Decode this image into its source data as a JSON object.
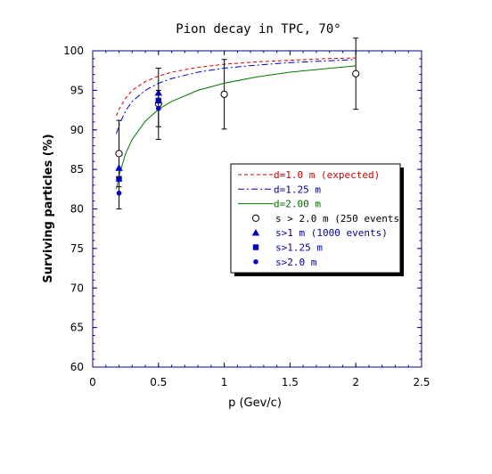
{
  "chart_data": {
    "type": "line",
    "title": "Pion decay in TPC, 70°",
    "xlabel": "p (Gev/c)",
    "ylabel": "Surviving particles  (%)",
    "xlim": [
      0,
      2.5
    ],
    "ylim": [
      60,
      100
    ],
    "x_ticks": [
      "0",
      "0.5",
      "1",
      "1.5",
      "2",
      "2.5"
    ],
    "y_ticks": [
      "60",
      "65",
      "70",
      "75",
      "80",
      "85",
      "90",
      "95",
      "100"
    ],
    "grid": false,
    "legend_position": "center-right",
    "series": [
      {
        "name": "d=1.0 m (expected)",
        "kind": "curve",
        "style": "dashed",
        "color": "#cc0000",
        "x": [
          0.18,
          0.2,
          0.25,
          0.3,
          0.4,
          0.5,
          0.6,
          0.8,
          1.0,
          1.25,
          1.5,
          1.75,
          2.0
        ],
        "y": [
          91.8,
          92.6,
          94.0,
          95.0,
          96.1,
          96.8,
          97.3,
          97.9,
          98.3,
          98.6,
          98.8,
          99.0,
          99.1
        ]
      },
      {
        "name": "d=1.25 m",
        "kind": "curve",
        "style": "dashdot",
        "color": "#0000cc",
        "x": [
          0.18,
          0.2,
          0.25,
          0.3,
          0.4,
          0.5,
          0.6,
          0.8,
          1.0,
          1.25,
          1.5,
          1.75,
          2.0
        ],
        "y": [
          89.5,
          90.6,
          92.4,
          93.6,
          95.0,
          95.9,
          96.5,
          97.3,
          97.8,
          98.2,
          98.5,
          98.7,
          98.9
        ]
      },
      {
        "name": "d=2.00 m",
        "kind": "curve",
        "style": "solid",
        "color": "#007700",
        "x": [
          0.18,
          0.2,
          0.25,
          0.3,
          0.4,
          0.5,
          0.6,
          0.8,
          1.0,
          1.25,
          1.5,
          1.75,
          2.0
        ],
        "y": [
          82.5,
          84.2,
          87.0,
          88.8,
          91.1,
          92.6,
          93.6,
          95.0,
          95.9,
          96.7,
          97.3,
          97.7,
          98.1
        ]
      },
      {
        "name": "s > 2.0 m (250 events)",
        "kind": "points",
        "marker": "open-circle",
        "color": "#000000",
        "x": [
          0.2,
          0.5,
          1.0,
          2.0
        ],
        "y": [
          87.0,
          93.3,
          94.5,
          97.1
        ],
        "yerr": [
          4.2,
          4.5,
          4.4,
          4.5
        ]
      },
      {
        "name": "s>1 m (1000 events)",
        "kind": "points",
        "marker": "triangle",
        "color": "#0000cc",
        "x": [
          0.2,
          0.5
        ],
        "y": [
          85.2,
          94.7
        ]
      },
      {
        "name": "s>1.25 m",
        "kind": "points",
        "marker": "square",
        "color": "#0000cc",
        "x": [
          0.2,
          0.5
        ],
        "y": [
          83.8,
          93.7
        ]
      },
      {
        "name": "s>2.0 m",
        "kind": "points",
        "marker": "dot",
        "color": "#0000cc",
        "x": [
          0.2,
          0.5
        ],
        "y": [
          82.0,
          92.7
        ],
        "yerr": [
          2.0,
          2.3
        ]
      }
    ]
  },
  "colors": {
    "frame": "#00008b",
    "text": "#000000"
  }
}
